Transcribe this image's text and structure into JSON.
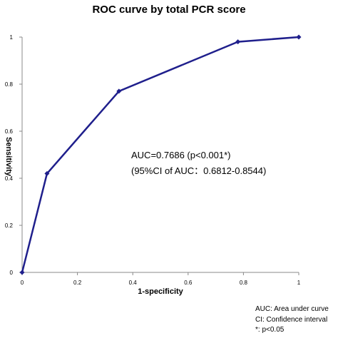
{
  "chart_data": {
    "type": "line",
    "title": "ROC curve by total PCR score",
    "xlabel": "1-specificity",
    "ylabel": "Sensitivity",
    "xlim": [
      0,
      1
    ],
    "ylim": [
      0,
      1
    ],
    "xticks": [
      "0",
      "0.2",
      "0.4",
      "0.6",
      "0.8",
      "1"
    ],
    "yticks": [
      "0",
      "0.2",
      "0.4",
      "0.6",
      "0.8",
      "1"
    ],
    "grid": false,
    "series": [
      {
        "x": [
          0,
          0.09,
          0.35,
          0.78,
          1.0
        ],
        "y": [
          0,
          0.42,
          0.77,
          0.98,
          1.0
        ],
        "color": "#1f1f8c"
      }
    ],
    "annotations": [
      "AUC=0.7686  (p<0.001*)",
      "(95%CI of AUC：0.6812-0.8544)"
    ]
  },
  "footer": {
    "line1": "AUC: Area under curve",
    "line2": "CI: Confidence interval",
    "line3": "*:  p<0.05"
  }
}
